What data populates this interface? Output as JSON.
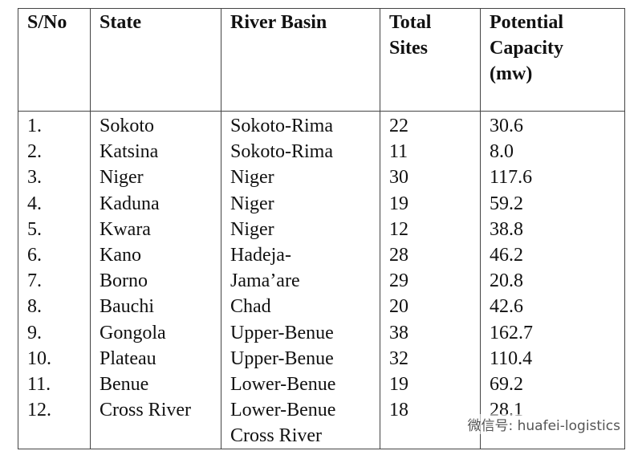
{
  "table": {
    "columns": [
      {
        "header": [
          "S/No"
        ],
        "lines": [
          "1.",
          "2.",
          "3.",
          "4.",
          "5.",
          "6.",
          "7.",
          "8.",
          "9.",
          "10.",
          "11.",
          "12."
        ]
      },
      {
        "header": [
          "State"
        ],
        "lines": [
          "Sokoto",
          "Katsina",
          "Niger",
          "Kaduna",
          "Kwara",
          "Kano",
          "Borno",
          "Bauchi",
          "Gongola",
          "Plateau",
          "Benue",
          "Cross River"
        ]
      },
      {
        "header": [
          "River Basin"
        ],
        "lines": [
          "Sokoto-Rima",
          "Sokoto-Rima",
          "Niger",
          "Niger",
          "Niger",
          "Hadeja-",
          "Jama’are",
          "Chad",
          "Upper-Benue",
          "Upper-Benue",
          "Lower-Benue",
          "Lower-Benue",
          "Cross River"
        ]
      },
      {
        "header": [
          "Total",
          "Sites"
        ],
        "lines": [
          "22",
          "11",
          "30",
          "19",
          "12",
          "28",
          "29",
          "20",
          "38",
          "32",
          "19",
          "18"
        ]
      },
      {
        "header": [
          "Potential",
          "Capacity",
          "(mw)"
        ],
        "lines": [
          "30.6",
          "8.0",
          "117.6",
          "59.2",
          "38.8",
          "46.2",
          "20.8",
          "42.6",
          "162.7",
          "110.4",
          "69.2",
          "28.1"
        ]
      }
    ]
  },
  "watermark": "微信号: huafei-logistics"
}
